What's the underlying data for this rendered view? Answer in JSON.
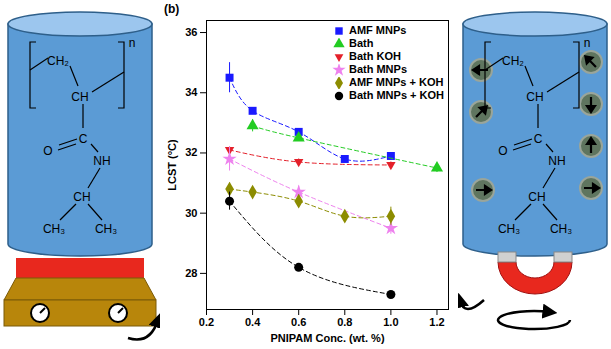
{
  "chart_data": {
    "type": "scatter",
    "panel_label": "(b)",
    "x_label": "PNIPAM Conc. (wt. %)",
    "y_label": "LCST (°C)",
    "xlim": [
      0.2,
      1.25
    ],
    "ylim": [
      26.8,
      36.4
    ],
    "xticks": [
      0.2,
      0.4,
      0.6,
      0.8,
      {
        "value": 1,
        "label": "1.0"
      },
      1.2
    ],
    "yticks": [
      28,
      30,
      32,
      34,
      36
    ],
    "legend": "top-right",
    "series": [
      {
        "name": "AMF MNPs",
        "color": "#1a1aff",
        "marker": "square",
        "line_style": "dashed",
        "x": [
          0.3,
          0.4,
          0.6,
          0.8,
          1.0
        ],
        "values": [
          34.5,
          33.4,
          32.7,
          31.8,
          31.9
        ],
        "errors": [
          0.5,
          0.1,
          0.1,
          0.1,
          0.1
        ]
      },
      {
        "name": "Bath",
        "color": "#22cc22",
        "marker": "triangle",
        "line_style": "dashed",
        "x": [
          0.4,
          0.6,
          1.2
        ],
        "values": [
          32.9,
          32.5,
          31.5
        ],
        "errors": [
          0.2,
          0.1,
          0.15
        ]
      },
      {
        "name": "Bath KOH",
        "color": "#e4202a",
        "marker": "triangle-down",
        "line_style": "dashed",
        "x": [
          0.3,
          0.6,
          1.0
        ],
        "values": [
          32.1,
          31.7,
          31.6
        ],
        "errors": [
          0.1,
          0.1,
          0.1
        ]
      },
      {
        "name": "Bath MNPs",
        "color": "#ee82ee",
        "marker": "star",
        "line_style": "dashed",
        "x": [
          0.3,
          0.6,
          1.0
        ],
        "values": [
          31.8,
          30.7,
          29.5
        ],
        "errors": [
          0.4,
          0.2,
          0.2
        ]
      },
      {
        "name": "AMF MNPs + KOH",
        "color": "#8c8c00",
        "marker": "diamond",
        "line_style": "dashed",
        "x": [
          0.3,
          0.4,
          0.6,
          0.8,
          1.0
        ],
        "values": [
          30.8,
          30.7,
          30.4,
          29.9,
          29.9
        ],
        "errors": [
          0.2,
          0.1,
          0.2,
          0.1,
          0.3
        ]
      },
      {
        "name": "Bath MNPs + KOH",
        "color": "#000000",
        "marker": "circle",
        "line_style": "dashed",
        "x": [
          0.3,
          0.6,
          1.0
        ],
        "values": [
          30.4,
          28.2,
          27.3
        ],
        "errors": [
          0.3,
          0.1,
          0.1
        ]
      }
    ]
  },
  "illustration": {
    "monomer_labels": [
      "CH₂",
      "CH",
      "C",
      "O",
      "NH",
      "CH",
      "CH₃",
      "CH₃",
      "n"
    ]
  }
}
